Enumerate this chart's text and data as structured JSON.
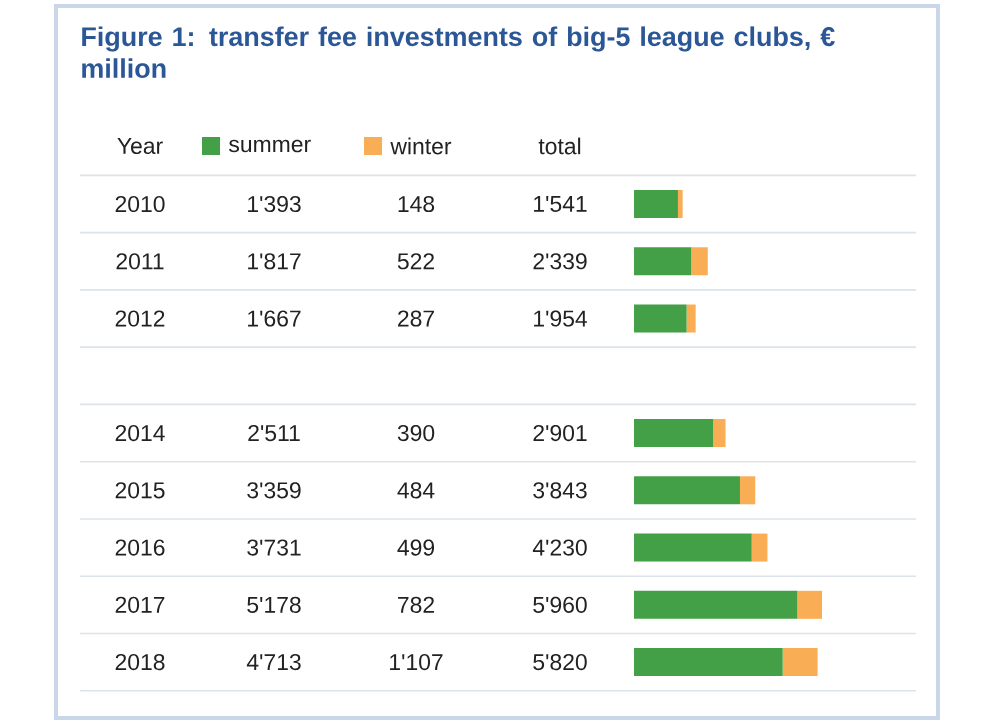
{
  "chart_data": {
    "type": "bar",
    "orientation": "horizontal",
    "stacked": true,
    "title": "Figure 1: transfer fee investments of big-5 league clubs, € million",
    "ylabel": "Year",
    "annotations": [
      "total"
    ],
    "legend": "top left",
    "categories": [
      "2010",
      "2011",
      "2012",
      null,
      "2014",
      "2015",
      "2016",
      "2017",
      "2018"
    ],
    "series": [
      {
        "name": "summer",
        "color": "#43a047",
        "values": [
          1393,
          1817,
          1667,
          null,
          2511,
          3359,
          3731,
          5178,
          4713
        ],
        "value_labels": [
          "1'393",
          "1'817",
          "1'667",
          null,
          "2'511",
          "3'359",
          "3'731",
          "5'178",
          "4'713"
        ]
      },
      {
        "name": "winter",
        "color": "#f9ae55",
        "values": [
          148,
          522,
          287,
          null,
          390,
          484,
          499,
          782,
          1107
        ],
        "value_labels": [
          "148",
          "522",
          "287",
          null,
          "390",
          "484",
          "499",
          "782",
          "1'107"
        ]
      }
    ],
    "totals": [
      "1'541",
      "2'339",
      "1'954",
      null,
      "2'901",
      "3'843",
      "4'230",
      "5'960",
      "5'820"
    ]
  }
}
